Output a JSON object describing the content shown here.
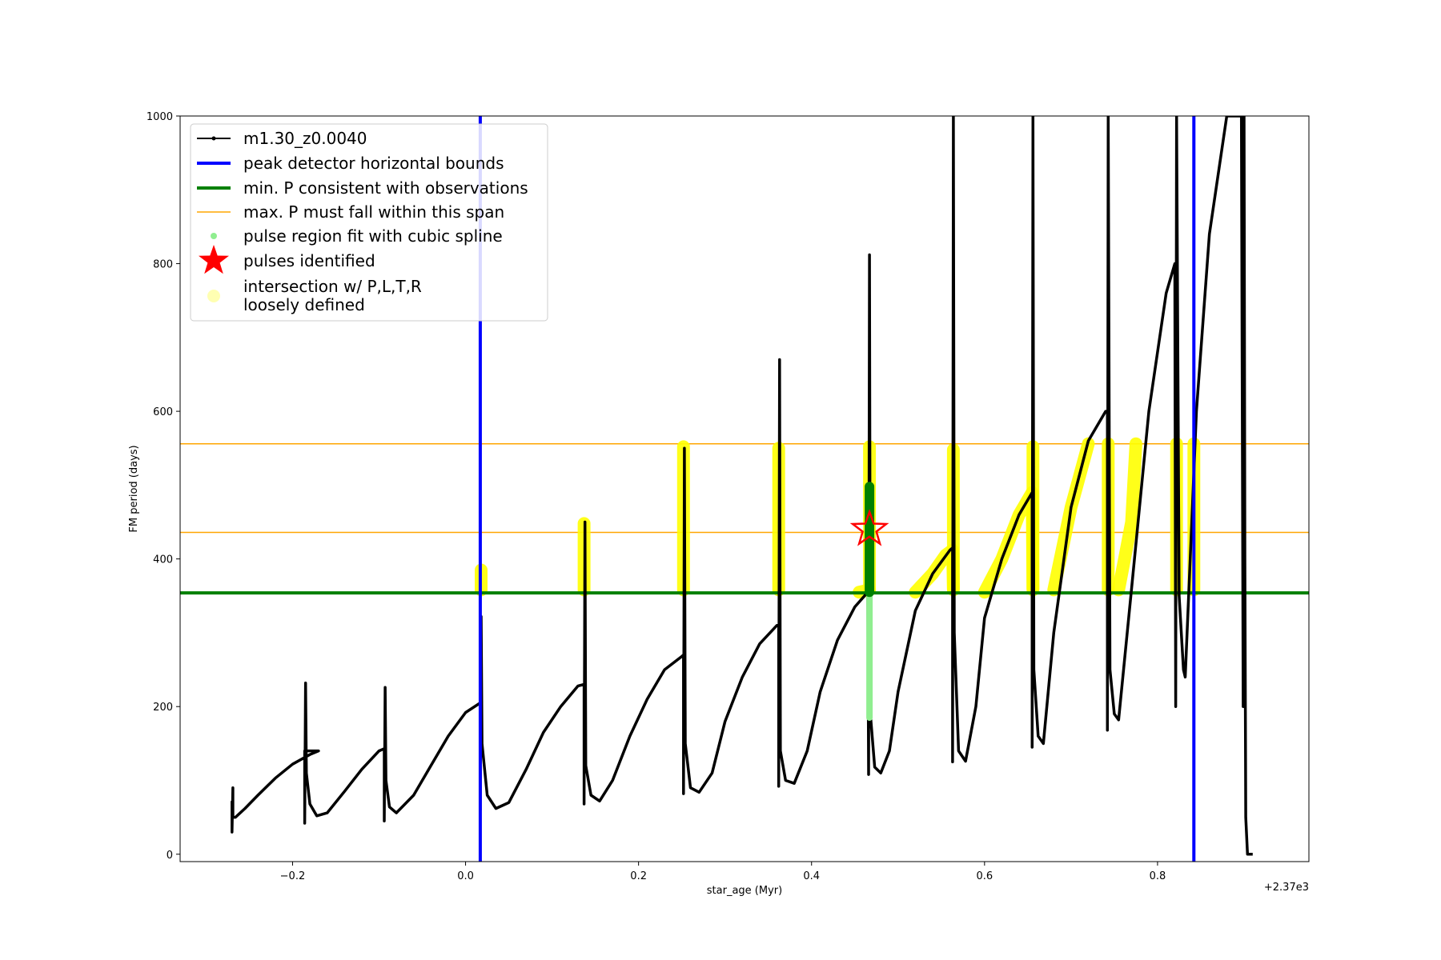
{
  "chart_data": {
    "type": "line",
    "xlabel": "star_age (Myr)",
    "ylabel": "FM period (days)",
    "x_offset_label": "+2.37e3",
    "xlim": [
      -0.33,
      0.975
    ],
    "ylim": [
      -10,
      1000
    ],
    "x_ticks": [
      -0.2,
      0.0,
      0.2,
      0.4,
      0.6,
      0.8
    ],
    "x_tick_labels": [
      "−0.2",
      "0.0",
      "0.2",
      "0.4",
      "0.6",
      "0.8"
    ],
    "y_ticks": [
      0,
      200,
      400,
      600,
      800,
      1000
    ],
    "y_tick_labels": [
      "0",
      "200",
      "400",
      "600",
      "800",
      "1000"
    ],
    "grid": false,
    "legend_position": "top-left",
    "colors": {
      "track": "#000000",
      "bounds": "#0000ff",
      "min_period": "#008000",
      "max_period_span": "#ffa500",
      "spline": "#90ee90",
      "spline_dark": "#008000",
      "pulse": "#ff0000",
      "intersection": "#ffff00"
    },
    "legend": [
      {
        "key": "track",
        "label": "m1.30_z0.0040"
      },
      {
        "key": "bounds",
        "label": "peak detector horizontal bounds"
      },
      {
        "key": "min_period",
        "label": "min. P consistent with observations"
      },
      {
        "key": "max_period_span",
        "label": "max. P must fall within this span"
      },
      {
        "key": "spline",
        "label": "pulse region fit with cubic spline"
      },
      {
        "key": "pulse",
        "label": "pulses identified"
      },
      {
        "key": "intersection",
        "label": "intersection w/ P,L,T,R",
        "label2": "loosely defined"
      }
    ],
    "vertical_bounds_x": [
      0.017,
      0.842
    ],
    "min_period_y": 354,
    "max_period_span_y": [
      436,
      556
    ],
    "track_series": {
      "name": "m1.30_z0.0040",
      "points": [
        [
          -0.27,
          72
        ],
        [
          -0.27,
          30
        ],
        [
          -0.269,
          90
        ],
        [
          -0.269,
          50
        ],
        [
          -0.266,
          50
        ],
        [
          -0.255,
          62
        ],
        [
          -0.24,
          80
        ],
        [
          -0.22,
          103
        ],
        [
          -0.2,
          122
        ],
        [
          -0.18,
          135
        ],
        [
          -0.17,
          140
        ],
        [
          -0.186,
          140
        ],
        [
          -0.186,
          42
        ],
        [
          -0.185,
          232
        ],
        [
          -0.184,
          110
        ],
        [
          -0.18,
          68
        ],
        [
          -0.172,
          52
        ],
        [
          -0.16,
          56
        ],
        [
          -0.14,
          85
        ],
        [
          -0.12,
          115
        ],
        [
          -0.1,
          140
        ],
        [
          -0.094,
          143
        ],
        [
          -0.094,
          45
        ],
        [
          -0.093,
          226
        ],
        [
          -0.092,
          100
        ],
        [
          -0.088,
          64
        ],
        [
          -0.08,
          56
        ],
        [
          -0.06,
          80
        ],
        [
          -0.04,
          120
        ],
        [
          -0.02,
          160
        ],
        [
          0.0,
          192
        ],
        [
          0.017,
          205
        ],
        [
          0.017,
          60
        ],
        [
          0.018,
          322
        ],
        [
          0.019,
          150
        ],
        [
          0.025,
          80
        ],
        [
          0.035,
          62
        ],
        [
          0.05,
          70
        ],
        [
          0.07,
          115
        ],
        [
          0.09,
          165
        ],
        [
          0.11,
          200
        ],
        [
          0.13,
          228
        ],
        [
          0.137,
          230
        ],
        [
          0.137,
          68
        ],
        [
          0.138,
          450
        ],
        [
          0.139,
          120
        ],
        [
          0.145,
          80
        ],
        [
          0.155,
          72
        ],
        [
          0.17,
          100
        ],
        [
          0.19,
          160
        ],
        [
          0.21,
          210
        ],
        [
          0.23,
          250
        ],
        [
          0.25,
          268
        ],
        [
          0.252,
          270
        ],
        [
          0.252,
          82
        ],
        [
          0.253,
          550
        ],
        [
          0.254,
          150
        ],
        [
          0.26,
          90
        ],
        [
          0.27,
          84
        ],
        [
          0.285,
          110
        ],
        [
          0.3,
          180
        ],
        [
          0.32,
          240
        ],
        [
          0.34,
          285
        ],
        [
          0.36,
          310
        ],
        [
          0.362,
          310
        ],
        [
          0.362,
          92
        ],
        [
          0.363,
          670
        ],
        [
          0.364,
          140
        ],
        [
          0.37,
          100
        ],
        [
          0.38,
          96
        ],
        [
          0.395,
          140
        ],
        [
          0.41,
          220
        ],
        [
          0.43,
          290
        ],
        [
          0.45,
          335
        ],
        [
          0.465,
          355
        ],
        [
          0.466,
          108
        ],
        [
          0.467,
          812
        ],
        [
          0.468,
          190
        ],
        [
          0.473,
          118
        ],
        [
          0.48,
          110
        ],
        [
          0.49,
          140
        ],
        [
          0.5,
          220
        ],
        [
          0.52,
          330
        ],
        [
          0.54,
          380
        ],
        [
          0.56,
          412
        ],
        [
          0.563,
          415
        ],
        [
          0.563,
          125
        ],
        [
          0.564,
          1000
        ],
        [
          0.565,
          300
        ],
        [
          0.57,
          140
        ],
        [
          0.578,
          126
        ],
        [
          0.59,
          200
        ],
        [
          0.6,
          320
        ],
        [
          0.62,
          400
        ],
        [
          0.64,
          460
        ],
        [
          0.655,
          490
        ],
        [
          0.655,
          145
        ],
        [
          0.656,
          1000
        ],
        [
          0.657,
          250
        ],
        [
          0.662,
          160
        ],
        [
          0.668,
          150
        ],
        [
          0.68,
          300
        ],
        [
          0.7,
          470
        ],
        [
          0.72,
          560
        ],
        [
          0.74,
          600
        ],
        [
          0.742,
          600
        ],
        [
          0.742,
          168
        ],
        [
          0.743,
          1000
        ],
        [
          0.745,
          250
        ],
        [
          0.75,
          190
        ],
        [
          0.755,
          182
        ],
        [
          0.77,
          360
        ],
        [
          0.79,
          600
        ],
        [
          0.81,
          760
        ],
        [
          0.82,
          800
        ],
        [
          0.821,
          200
        ],
        [
          0.822,
          1000
        ],
        [
          0.825,
          350
        ],
        [
          0.83,
          250
        ],
        [
          0.832,
          240
        ],
        [
          0.845,
          600
        ],
        [
          0.86,
          840
        ],
        [
          0.88,
          1000
        ],
        [
          0.897,
          1000
        ],
        [
          0.899,
          200
        ],
        [
          0.9,
          1000
        ],
        [
          0.901,
          400
        ],
        [
          0.902,
          50
        ],
        [
          0.904,
          0
        ],
        [
          0.91,
          0
        ]
      ]
    },
    "intersection_segments": [
      [
        [
          0.018,
          358
        ],
        [
          0.018,
          385
        ]
      ],
      [
        [
          0.137,
          358
        ],
        [
          0.137,
          448
        ]
      ],
      [
        [
          0.252,
          358
        ],
        [
          0.252,
          552
        ]
      ],
      [
        [
          0.362,
          358
        ],
        [
          0.362,
          550
        ]
      ],
      [
        [
          0.467,
          358
        ],
        [
          0.467,
          552
        ]
      ],
      [
        [
          0.455,
          355
        ],
        [
          0.467,
          358
        ]
      ],
      [
        [
          0.564,
          358
        ],
        [
          0.564,
          548
        ]
      ],
      [
        [
          0.52,
          355
        ],
        [
          0.54,
          380
        ],
        [
          0.555,
          405
        ],
        [
          0.563,
          412
        ],
        [
          0.564,
          360
        ]
      ],
      [
        [
          0.6,
          355
        ],
        [
          0.62,
          400
        ],
        [
          0.64,
          460
        ],
        [
          0.655,
          490
        ],
        [
          0.656,
          360
        ]
      ],
      [
        [
          0.656,
          358
        ],
        [
          0.656,
          552
        ]
      ],
      [
        [
          0.68,
          358
        ],
        [
          0.7,
          470
        ],
        [
          0.72,
          556
        ]
      ],
      [
        [
          0.743,
          358
        ],
        [
          0.743,
          556
        ]
      ],
      [
        [
          0.755,
          358
        ],
        [
          0.77,
          450
        ],
        [
          0.775,
          556
        ]
      ],
      [
        [
          0.822,
          358
        ],
        [
          0.822,
          556
        ]
      ],
      [
        [
          0.842,
          358
        ],
        [
          0.842,
          556
        ]
      ]
    ],
    "spline_light": [
      [
        0.467,
        185
      ],
      [
        0.467,
        360
      ]
    ],
    "spline_dark": [
      [
        0.467,
        355
      ],
      [
        0.467,
        498
      ]
    ],
    "pulses": [
      [
        0.467,
        440
      ]
    ]
  }
}
